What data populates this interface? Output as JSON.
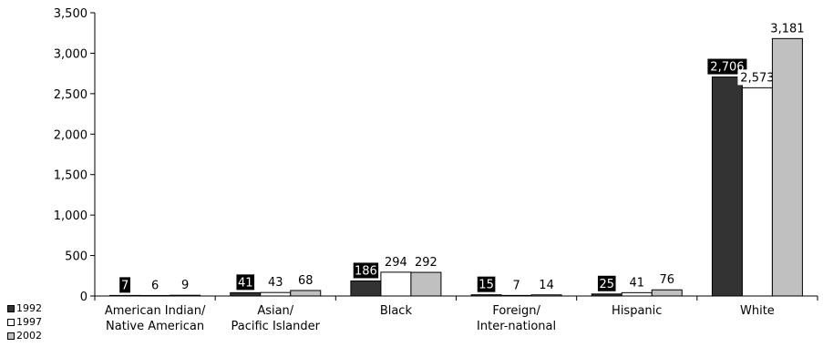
{
  "chart_data": {
    "type": "bar",
    "categories": [
      [
        "American Indian/",
        "Native American"
      ],
      [
        "Asian/",
        "Pacific Islander"
      ],
      [
        "Black"
      ],
      [
        "Foreign/",
        "Inter-national"
      ],
      [
        "Hispanic"
      ],
      [
        "White"
      ]
    ],
    "series": [
      {
        "name": "1992",
        "values": [
          7,
          41,
          186,
          15,
          25,
          2706
        ],
        "labels": [
          "7",
          "41",
          "186",
          "15",
          "25",
          "2,706"
        ],
        "color": "#333333"
      },
      {
        "name": "1997",
        "values": [
          6,
          43,
          294,
          7,
          41,
          2573
        ],
        "labels": [
          "6",
          "43",
          "294",
          "7",
          "41",
          "2,573"
        ],
        "color": "#ffffff"
      },
      {
        "name": "2002",
        "values": [
          9,
          68,
          292,
          14,
          76,
          3181
        ],
        "labels": [
          "9",
          "68",
          "292",
          "14",
          "76",
          "3,181"
        ],
        "color": "#c0c0c0"
      }
    ],
    "ylim": [
      0,
      3500
    ],
    "yticks": [
      0,
      500,
      1000,
      1500,
      2000,
      2500,
      3000,
      3500
    ],
    "ytick_labels": [
      "0",
      "500",
      "1,000",
      "1,500",
      "2,000",
      "2,500",
      "3,000",
      "3,500"
    ],
    "legend_position": "bottom-left",
    "grid": false
  }
}
